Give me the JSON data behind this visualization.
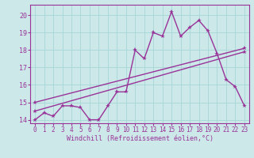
{
  "title": "",
  "xlabel": "Windchill (Refroidissement éolien,°C)",
  "ylabel": "",
  "bg_color": "#cce8e8",
  "line_color": "#993399",
  "grid_color": "#aad8d8",
  "xlim": [
    -0.5,
    23.5
  ],
  "ylim": [
    13.8,
    20.6
  ],
  "xticks": [
    0,
    1,
    2,
    3,
    4,
    5,
    6,
    7,
    8,
    9,
    10,
    11,
    12,
    13,
    14,
    15,
    16,
    17,
    18,
    19,
    20,
    21,
    22,
    23
  ],
  "yticks": [
    14,
    15,
    16,
    17,
    18,
    19,
    20
  ],
  "line1_x": [
    0,
    1,
    2,
    3,
    4,
    5,
    6,
    7,
    8,
    9,
    10,
    11,
    12,
    13,
    14,
    15,
    16,
    17,
    18,
    19,
    20,
    21,
    22,
    23
  ],
  "line1_y": [
    14.0,
    14.4,
    14.2,
    14.8,
    14.8,
    14.7,
    14.0,
    14.0,
    14.8,
    15.6,
    15.6,
    18.0,
    17.5,
    19.0,
    18.8,
    20.2,
    18.8,
    19.3,
    19.7,
    19.1,
    17.8,
    16.3,
    15.9,
    14.8
  ],
  "line2_x": [
    0,
    23
  ],
  "line2_y": [
    14.5,
    17.9
  ],
  "line3_x": [
    0,
    23
  ],
  "line3_y": [
    15.0,
    18.1
  ],
  "marker": "*",
  "markersize": 4,
  "linewidth": 1.0,
  "tick_fontsize": 5.5,
  "xlabel_fontsize": 6.0
}
